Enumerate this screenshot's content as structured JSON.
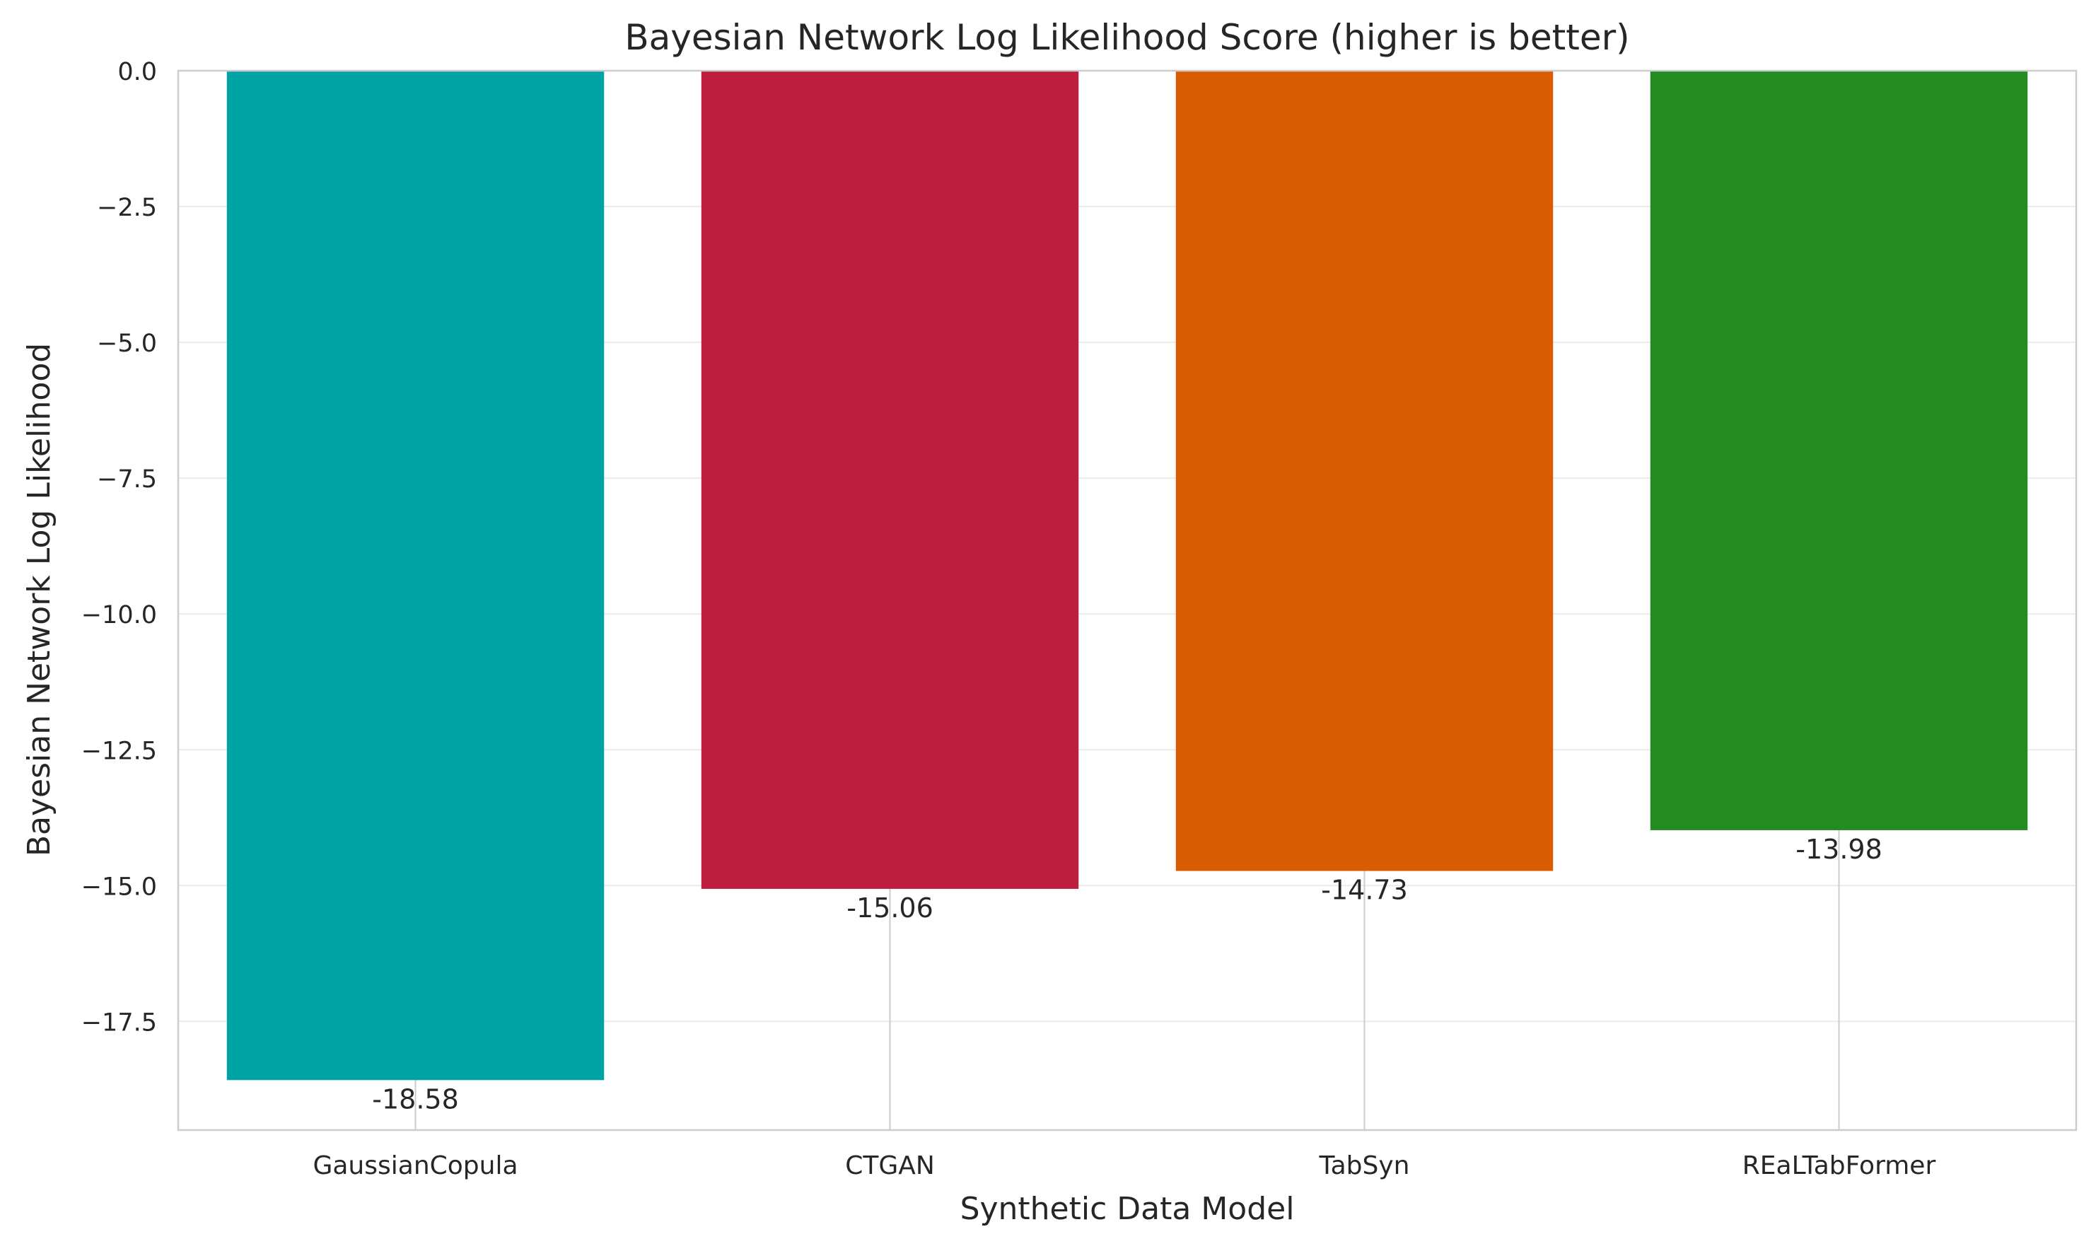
{
  "chart_data": {
    "type": "bar",
    "title": "Bayesian Network Log Likelihood Score (higher is better)",
    "xlabel": "Synthetic Data Model",
    "ylabel": "Bayesian Network Log Likelihood",
    "categories": [
      "GaussianCopula",
      "CTGAN",
      "TabSyn",
      "REaLTabFormer"
    ],
    "values": [
      -18.58,
      -15.06,
      -14.73,
      -13.98
    ],
    "value_labels": [
      "-18.58",
      "-15.06",
      "-14.73",
      "-13.98"
    ],
    "colors": [
      "#00a3a3",
      "#be1e3d",
      "#d95c02",
      "#228b22"
    ],
    "ylim": [
      -19.5,
      0
    ],
    "yticks": [
      0,
      -2.5,
      -5,
      -7.5,
      -10,
      -12.5,
      -15,
      -17.5
    ],
    "ytick_labels": [
      "0.0",
      "−2.5",
      "−5.0",
      "−7.5",
      "−10.0",
      "−12.5",
      "−15.0",
      "−17.5"
    ],
    "grid": true,
    "legend": false
  }
}
